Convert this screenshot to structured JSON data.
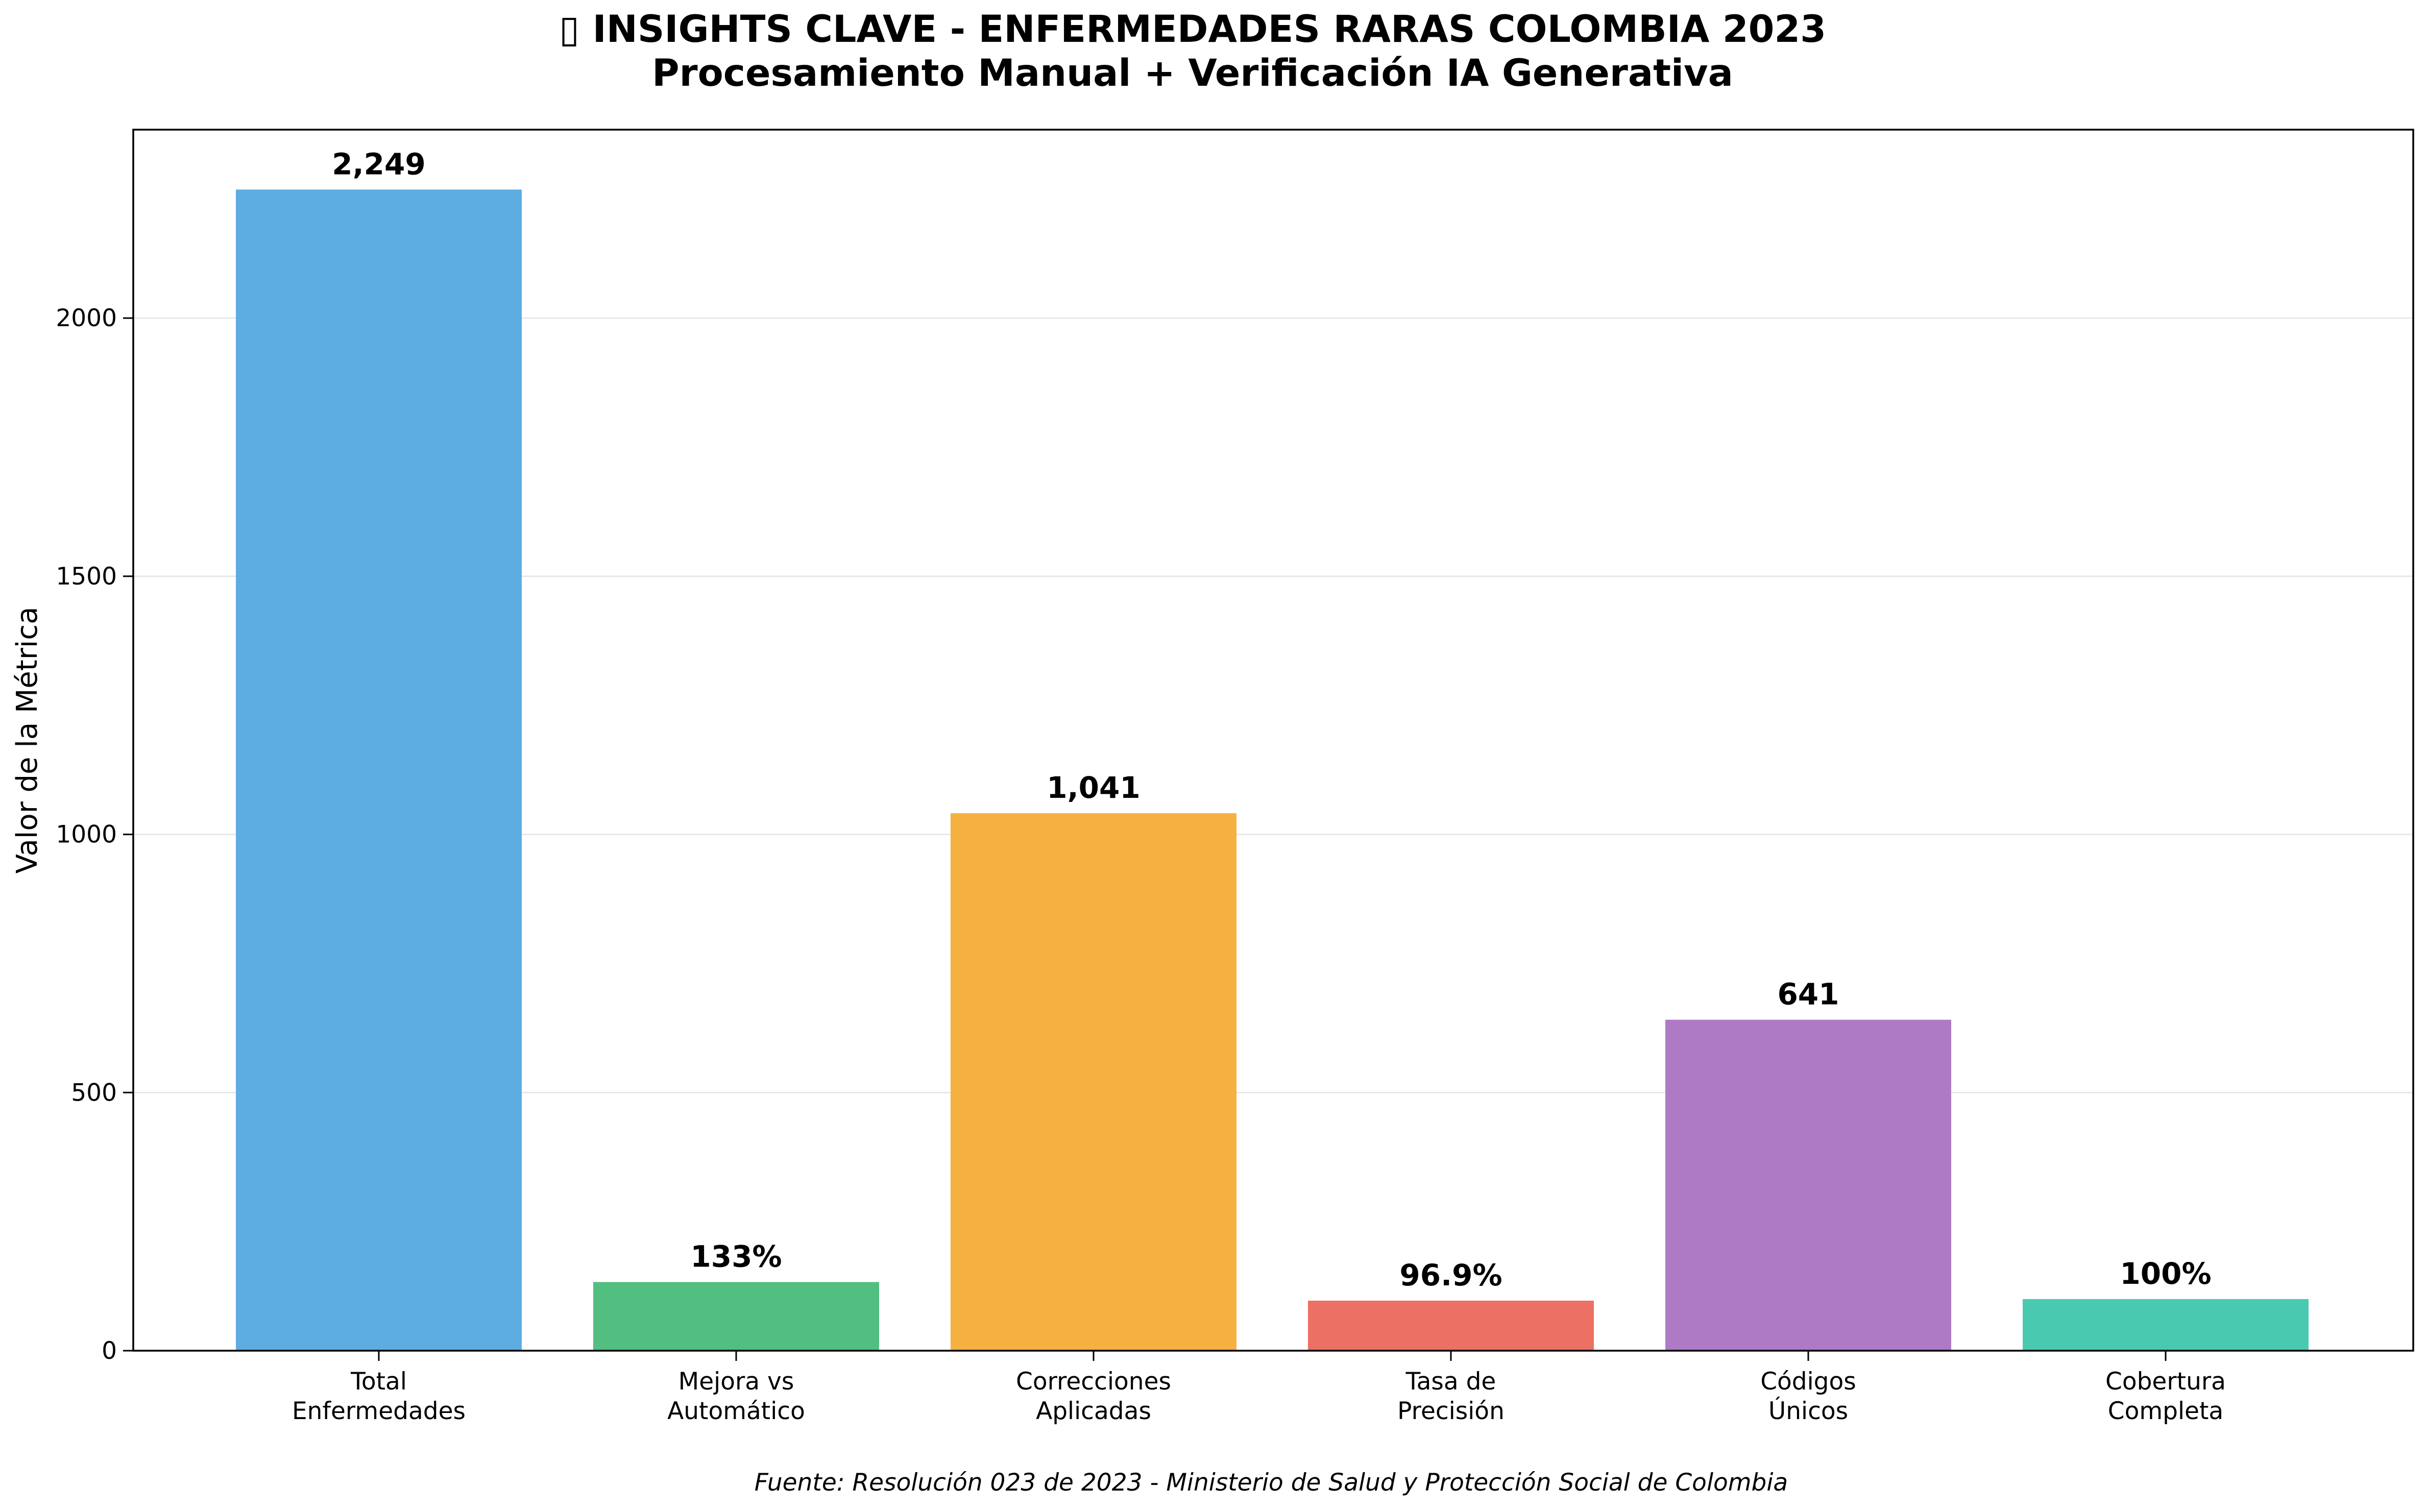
{
  "chart_data": {
    "type": "bar",
    "title_line1": "▯ INSIGHTS CLAVE - ENFERMEDADES RARAS COLOMBIA 2023",
    "title_line2": "Procesamiento Manual + Verificación IA Generativa",
    "xlabel": "",
    "ylabel": "Valor de la Métrica",
    "ylim": [
      0,
      2365
    ],
    "yticks": [
      0,
      500,
      1000,
      1500,
      2000
    ],
    "grid": "horizontal",
    "categories": [
      [
        "Total",
        "Enfermedades"
      ],
      [
        "Mejora vs",
        "Automático"
      ],
      [
        "Correcciones",
        "Aplicadas"
      ],
      [
        "Tasa de",
        "Precisión"
      ],
      [
        "Códigos",
        "Únicos"
      ],
      [
        "Cobertura",
        "Completa"
      ]
    ],
    "values": [
      2249,
      133,
      1041,
      96.9,
      641,
      100
    ],
    "value_labels": [
      "2,249",
      "133%",
      "1,041",
      "96.9%",
      "641",
      "100%"
    ],
    "colors": [
      "#5dade2",
      "#52be80",
      "#f5b041",
      "#ec7063",
      "#af7ac5",
      "#48c9b0"
    ]
  },
  "source": "Fuente: Resolución 023 de 2023 - Ministerio de Salud y Protección Social de Colombia"
}
